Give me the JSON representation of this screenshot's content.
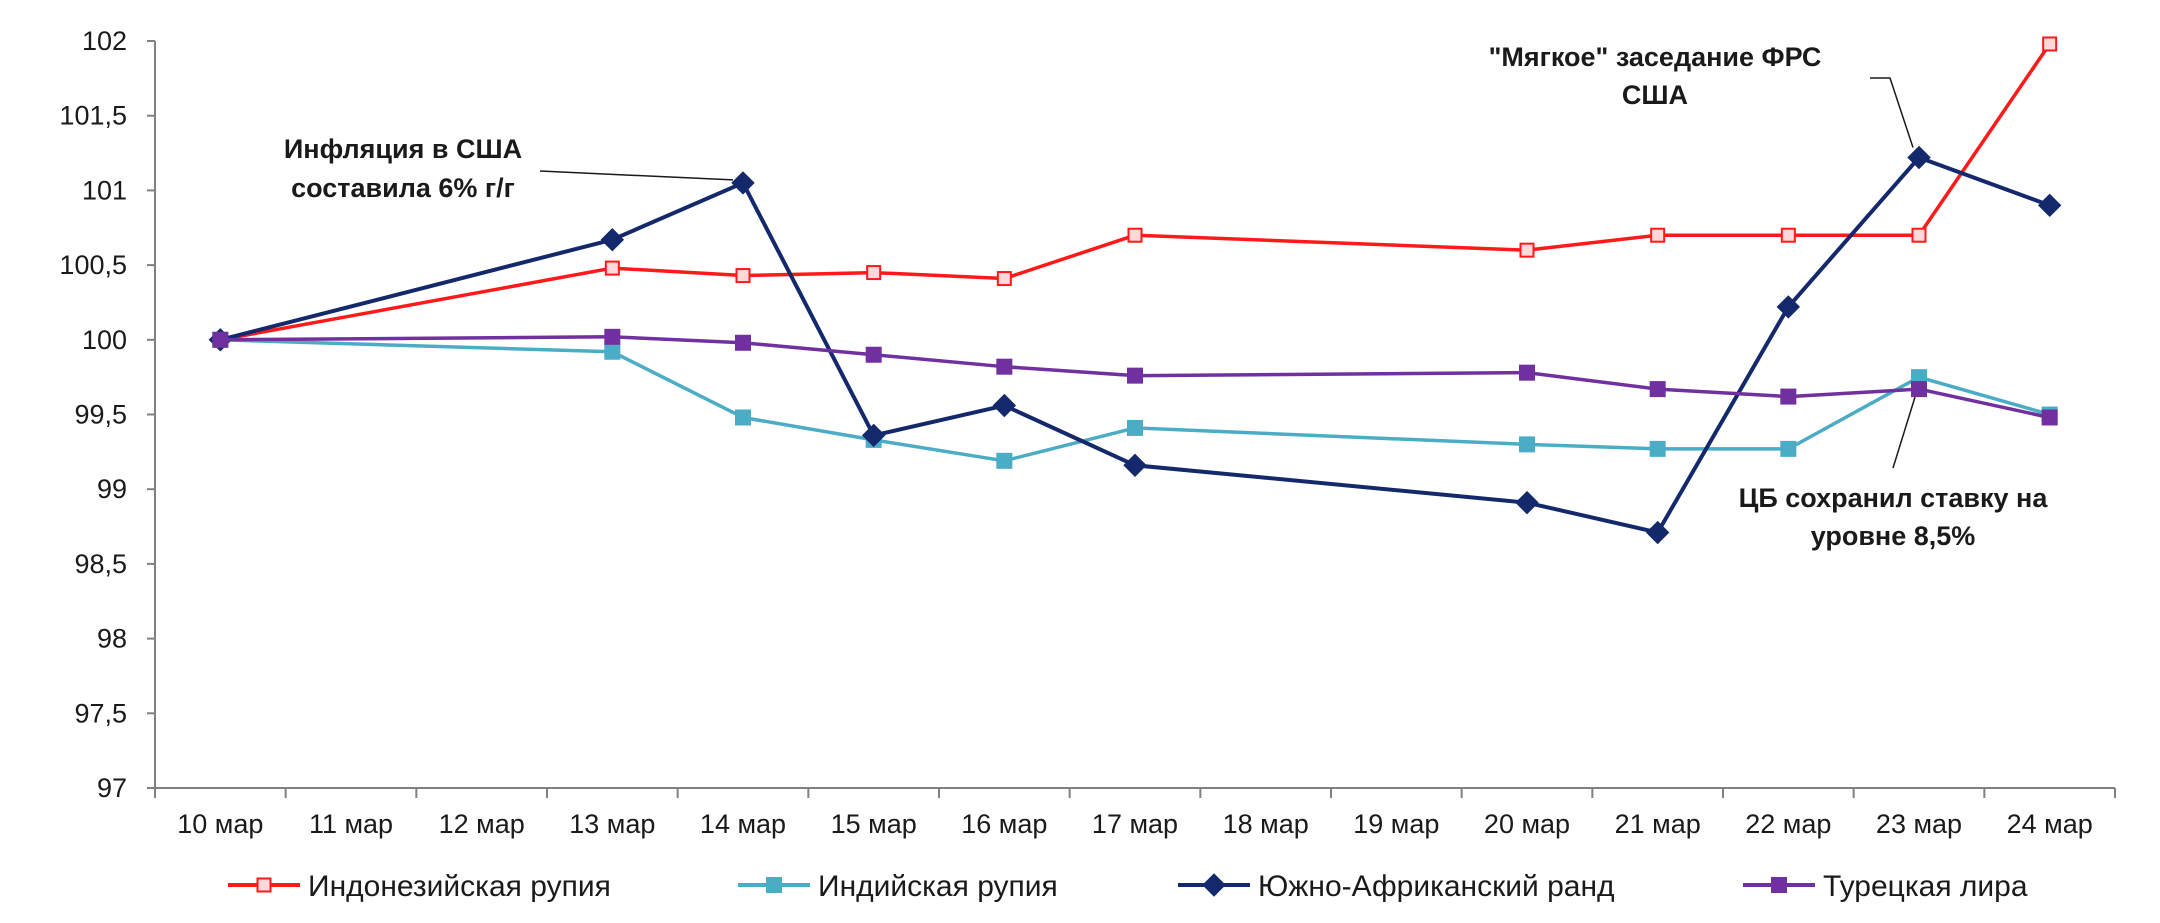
{
  "chart_data": {
    "type": "line",
    "title": "",
    "xlabel": "",
    "ylabel": "",
    "categories": [
      "10 мар",
      "11 мар",
      "12 мар",
      "13 мар",
      "14 мар",
      "15 мар",
      "16 мар",
      "17 мар",
      "18 мар",
      "19 мар",
      "20 мар",
      "21 мар",
      "22 мар",
      "23 мар",
      "24 мар"
    ],
    "ylim": [
      97,
      102
    ],
    "yticks": [
      "97",
      "97,5",
      "98",
      "98,5",
      "99",
      "99,5",
      "100",
      "100,5",
      "101",
      "101,5",
      "102"
    ],
    "grid": false,
    "legend_position": "bottom",
    "series": [
      {
        "name": "Индонезийская рупия",
        "color": "#ff1a1a",
        "marker": "square-open",
        "values": [
          100,
          null,
          null,
          100.48,
          100.43,
          100.45,
          100.41,
          100.7,
          null,
          null,
          100.6,
          100.7,
          100.7,
          100.7,
          101.98
        ]
      },
      {
        "name": "Индийская рупия",
        "color": "#4bacc6",
        "marker": "square",
        "values": [
          100,
          null,
          null,
          99.92,
          99.48,
          99.33,
          99.19,
          99.41,
          null,
          null,
          99.3,
          99.27,
          99.27,
          99.75,
          99.5
        ]
      },
      {
        "name": "Южно-Африканский ранд",
        "color": "#13296b",
        "marker": "diamond",
        "values": [
          100,
          null,
          null,
          100.67,
          101.05,
          99.36,
          99.56,
          99.16,
          null,
          null,
          98.91,
          98.71,
          100.22,
          101.22,
          100.9
        ]
      },
      {
        "name": "Турецкая лира",
        "color": "#7030a0",
        "marker": "square",
        "values": [
          100,
          null,
          null,
          100.02,
          99.98,
          99.9,
          99.82,
          99.76,
          null,
          null,
          99.78,
          99.67,
          99.62,
          99.67,
          99.48
        ]
      }
    ],
    "annotations": [
      {
        "id": "ann-inflation",
        "lines": [
          "Инфляция в США",
          "составила 6% г/г"
        ],
        "series": 2,
        "point": 4
      },
      {
        "id": "ann-fed",
        "lines": [
          "\"Мягкое\" заседание ФРС",
          "США"
        ],
        "series": 2,
        "point": 13
      },
      {
        "id": "ann-cb",
        "lines": [
          "ЦБ сохранил ставку на",
          "уровне 8,5%"
        ],
        "series": 3,
        "point": 13
      }
    ]
  }
}
